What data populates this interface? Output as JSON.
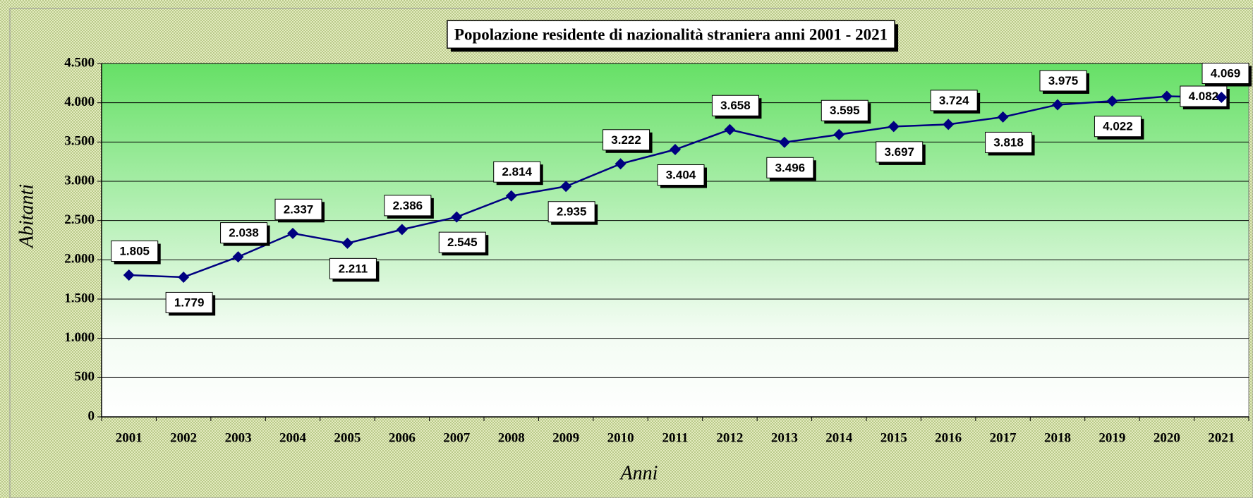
{
  "chart_data": {
    "type": "line",
    "title": "Popolazione residente di nazionalità straniera anni 2001 - 2021",
    "x_label": "Anni",
    "y_label": "Abitanti",
    "categories": [
      "2001",
      "2002",
      "2003",
      "2004",
      "2005",
      "2006",
      "2007",
      "2008",
      "2009",
      "2010",
      "2011",
      "2012",
      "2013",
      "2014",
      "2015",
      "2016",
      "2017",
      "2018",
      "2019",
      "2020",
      "2021"
    ],
    "series": [
      {
        "name": "Abitanti",
        "color": "#000080",
        "values": [
          1805,
          1779,
          2038,
          2337,
          2211,
          2386,
          2545,
          2814,
          2935,
          3222,
          3404,
          3658,
          3496,
          3595,
          3697,
          3724,
          3818,
          3975,
          4022,
          4082,
          4069
        ],
        "value_labels": [
          "1.805",
          "1.779",
          "2.038",
          "2.337",
          "2.211",
          "2.386",
          "2.545",
          "2.814",
          "2.935",
          "3.222",
          "3.404",
          "3.658",
          "3.496",
          "3.595",
          "3.697",
          "3.724",
          "3.818",
          "3.975",
          "4.022",
          "4.082",
          "4.069"
        ]
      }
    ],
    "ylim": [
      0,
      4500
    ],
    "yticks": [
      0,
      500,
      {
        "value": 1000,
        "label": "1.000"
      },
      {
        "value": 1500,
        "label": "1.500"
      },
      {
        "value": 2000,
        "label": "2.000"
      },
      {
        "value": 2500,
        "label": "2.500"
      },
      {
        "value": 3000,
        "label": "3.000"
      },
      {
        "value": 3500,
        "label": "3.500"
      },
      {
        "value": 4000,
        "label": "4.000"
      },
      {
        "value": 4500,
        "label": "4.500"
      }
    ],
    "grid": true
  }
}
